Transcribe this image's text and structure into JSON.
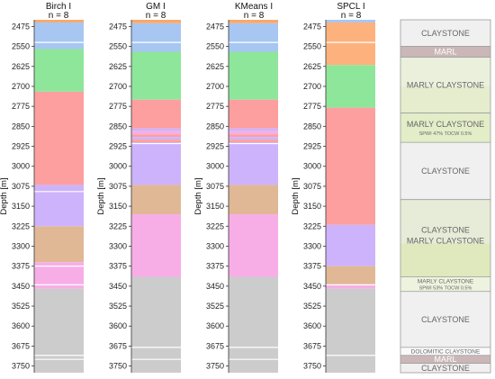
{
  "chart_data": {
    "type": "bar",
    "ylabel": "Depth [m]",
    "ylim": [
      2450,
      3775
    ],
    "yticks": [
      2475,
      2550,
      2625,
      2700,
      2775,
      2850,
      2925,
      3000,
      3075,
      3150,
      3225,
      3300,
      3375,
      3450,
      3525,
      3600,
      3675,
      3750
    ],
    "panels": [
      {
        "title": "Birch I",
        "n": "n = 8",
        "segments": [
          {
            "top": 2450,
            "bottom": 2460,
            "color": "#f9a86a"
          },
          {
            "top": 2460,
            "bottom": 2560,
            "color": "#a7c7f2"
          },
          {
            "top": 2560,
            "bottom": 2720,
            "color": "#8ee69a"
          },
          {
            "top": 2720,
            "bottom": 3070,
            "color": "#fd9f9f"
          },
          {
            "top": 3070,
            "bottom": 3225,
            "color": "#cdb3fb"
          },
          {
            "top": 3225,
            "bottom": 3360,
            "color": "#e0b896"
          },
          {
            "top": 3360,
            "bottom": 3460,
            "color": "#f7aee6"
          },
          {
            "top": 3460,
            "bottom": 3775,
            "color": "#cccccc"
          }
        ],
        "separators": [
          2535,
          3095,
          3375,
          3445,
          3710,
          3725
        ]
      },
      {
        "title": "GM I",
        "n": "n = 8",
        "segments": [
          {
            "top": 2450,
            "bottom": 2463,
            "color": "#f9a86a"
          },
          {
            "top": 2463,
            "bottom": 2570,
            "color": "#a7c7f2"
          },
          {
            "top": 2570,
            "bottom": 2750,
            "color": "#8ee69a"
          },
          {
            "top": 2750,
            "bottom": 2858,
            "color": "#fd9f9f"
          },
          {
            "top": 2858,
            "bottom": 2868,
            "color": "#cdb3fb"
          },
          {
            "top": 2868,
            "bottom": 2880,
            "color": "#f7aee6"
          },
          {
            "top": 2880,
            "bottom": 2890,
            "color": "#fd9f9f"
          },
          {
            "top": 2890,
            "bottom": 2900,
            "color": "#cdb3fb"
          },
          {
            "top": 2900,
            "bottom": 2910,
            "color": "#fd9f9f"
          },
          {
            "top": 2910,
            "bottom": 3070,
            "color": "#cdb3fb"
          },
          {
            "top": 3070,
            "bottom": 3180,
            "color": "#e0b896"
          },
          {
            "top": 3180,
            "bottom": 3415,
            "color": "#f7aee6"
          },
          {
            "top": 3415,
            "bottom": 3775,
            "color": "#cccccc"
          }
        ],
        "separators": [
          2535,
          2915,
          3680,
          3725
        ]
      },
      {
        "title": "KMeans I",
        "n": "n = 8",
        "segments": [
          {
            "top": 2450,
            "bottom": 2463,
            "color": "#f9a86a"
          },
          {
            "top": 2463,
            "bottom": 2570,
            "color": "#a7c7f2"
          },
          {
            "top": 2570,
            "bottom": 2750,
            "color": "#8ee69a"
          },
          {
            "top": 2750,
            "bottom": 2858,
            "color": "#fd9f9f"
          },
          {
            "top": 2858,
            "bottom": 2868,
            "color": "#cdb3fb"
          },
          {
            "top": 2868,
            "bottom": 2880,
            "color": "#f7aee6"
          },
          {
            "top": 2880,
            "bottom": 2890,
            "color": "#fd9f9f"
          },
          {
            "top": 2890,
            "bottom": 2900,
            "color": "#cdb3fb"
          },
          {
            "top": 2900,
            "bottom": 2910,
            "color": "#fd9f9f"
          },
          {
            "top": 2910,
            "bottom": 3070,
            "color": "#cdb3fb"
          },
          {
            "top": 3070,
            "bottom": 3180,
            "color": "#e0b896"
          },
          {
            "top": 3180,
            "bottom": 3415,
            "color": "#f7aee6"
          },
          {
            "top": 3415,
            "bottom": 3775,
            "color": "#cccccc"
          }
        ],
        "separators": [
          2535,
          2915,
          3680,
          3725
        ]
      },
      {
        "title": "SPCL I",
        "n": "n = 8",
        "segments": [
          {
            "top": 2450,
            "bottom": 2460,
            "color": "#a7c7f2"
          },
          {
            "top": 2460,
            "bottom": 2620,
            "color": "#fdb27e"
          },
          {
            "top": 2620,
            "bottom": 2780,
            "color": "#8ee69a"
          },
          {
            "top": 2780,
            "bottom": 3220,
            "color": "#fd9f9f"
          },
          {
            "top": 3220,
            "bottom": 3375,
            "color": "#cdb3fb"
          },
          {
            "top": 3375,
            "bottom": 3445,
            "color": "#e0b896"
          },
          {
            "top": 3445,
            "bottom": 3460,
            "color": "#f7aee6"
          },
          {
            "top": 3460,
            "bottom": 3775,
            "color": "#cccccc"
          }
        ],
        "separators": [
          2535,
          3445,
          3710
        ]
      }
    ]
  },
  "lithology": {
    "units": [
      {
        "label": "CLAYSTONE",
        "sub": "",
        "top": 2450,
        "bottom": 2550,
        "fill": "#f0f0f0",
        "size": "main"
      },
      {
        "label": "MARL",
        "sub": "",
        "top": 2550,
        "bottom": 2590,
        "fill": "#cbb7b7",
        "size": "band"
      },
      {
        "label": "MARLY CLAYSTONE",
        "sub": "",
        "top": 2590,
        "bottom": 2800,
        "fill": "#eaf0dc",
        "size": "main"
      },
      {
        "label": "MARLY CLAYSTONE",
        "sub": "SPWI 47% TOCW 0.5%",
        "top": 2800,
        "bottom": 2910,
        "fill": "#e3edc8",
        "size": "main"
      },
      {
        "label": "CLAYSTONE",
        "sub": "",
        "top": 2910,
        "bottom": 3125,
        "fill": "#f0f0f0",
        "size": "main"
      },
      {
        "label": "CLAYSTONE",
        "sub": "",
        "top": 3125,
        "bottom": 3415,
        "fill": "#e6ecd7",
        "size": "main2"
      },
      {
        "label": "MARLY CLAYSTONE",
        "sub": "",
        "top": 3125,
        "bottom": 3415,
        "fill": "none",
        "size": "main2b"
      },
      {
        "label": "MARLY CLAYSTONE",
        "sub": "SPWI 53% TOCW 0.5%",
        "top": 3415,
        "bottom": 3470,
        "fill": "#edf3de",
        "size": "small"
      },
      {
        "label": "CLAYSTONE",
        "sub": "",
        "top": 3470,
        "bottom": 3680,
        "fill": "#f0f0f0",
        "size": "main"
      },
      {
        "label": "DOLOMITIC CLAYSTONE",
        "sub": "",
        "top": 3680,
        "bottom": 3710,
        "fill": "#fafafa",
        "size": "small"
      },
      {
        "label": "MARL",
        "sub": "",
        "top": 3710,
        "bottom": 3740,
        "fill": "#cbb7b7",
        "size": "band"
      },
      {
        "label": "CLAYSTONE",
        "sub": "",
        "top": 3740,
        "bottom": 3775,
        "fill": "#f0f0f0",
        "size": "main"
      }
    ]
  }
}
